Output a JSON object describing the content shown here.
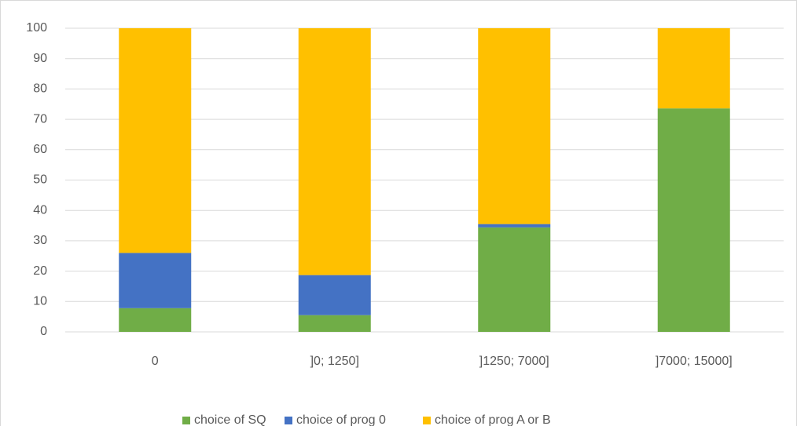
{
  "chart_data": {
    "type": "stacked_bar",
    "categories": [
      "0",
      "]0; 1250]",
      "]1250; 7000]",
      "]7000; 15000]"
    ],
    "series": [
      {
        "name": "choice of SQ",
        "color": "#70ad47",
        "values": [
          7.8,
          5.5,
          34.4,
          73.6
        ]
      },
      {
        "name": "choice of prog 0",
        "color": "#4472c4",
        "values": [
          18.2,
          13.2,
          1.1,
          0
        ]
      },
      {
        "name": "choice of prog A or B",
        "color": "#ffc000",
        "values": [
          74,
          81.3,
          64.5,
          26.4
        ]
      }
    ],
    "ylim": [
      0,
      100
    ],
    "yticks": [
      0,
      10,
      20,
      30,
      40,
      50,
      60,
      70,
      80,
      90,
      100
    ],
    "grid": true,
    "legend": "bottom"
  }
}
